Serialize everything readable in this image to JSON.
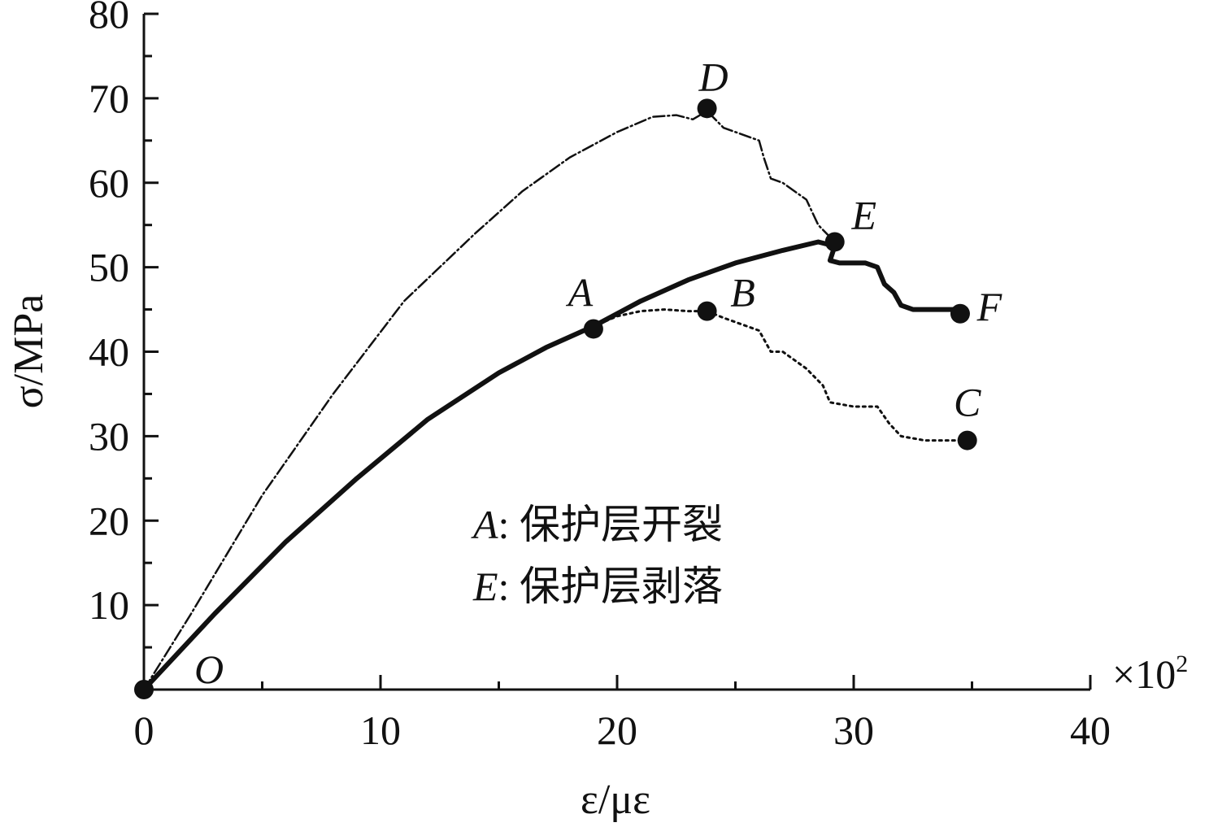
{
  "chart_data": {
    "type": "line",
    "xlabel": "ε/με",
    "ylabel": "σ/MPa",
    "x_multiplier": "×10",
    "x_multiplier_exp": "2",
    "xlim": [
      0,
      40
    ],
    "ylim": [
      0,
      80
    ],
    "x_ticks": [
      "0",
      "10",
      "20",
      "30",
      "40"
    ],
    "y_ticks": [
      "10",
      "20",
      "30",
      "40",
      "50",
      "60",
      "70",
      "80"
    ],
    "grid": false,
    "series": [
      {
        "style": "dash-dot",
        "x": [
          0,
          2,
          5,
          8,
          11,
          14,
          16,
          18,
          20,
          21.5,
          22.5,
          23.2,
          23.8,
          24.5,
          26,
          26.2,
          26.5,
          27,
          28,
          28.5,
          29.2
        ],
        "y": [
          0,
          9,
          23,
          35,
          46,
          54,
          59,
          63,
          66,
          67.8,
          68,
          67.5,
          68.5,
          66.5,
          65,
          63,
          60.5,
          60,
          58,
          55,
          53
        ]
      },
      {
        "style": "solid",
        "x": [
          0,
          3,
          6,
          9,
          12,
          15,
          17,
          19,
          21,
          23,
          25,
          27,
          28.5,
          29.2,
          29,
          29.4,
          30.5,
          31,
          31.3,
          31.7,
          32,
          32.5,
          33.5,
          34.5
        ],
        "y": [
          0,
          9,
          17.5,
          25,
          32,
          37.5,
          40.5,
          43,
          46,
          48.5,
          50.5,
          52,
          53,
          52.5,
          50.8,
          50.5,
          50.5,
          50,
          48,
          47,
          45.5,
          45,
          45,
          45
        ]
      },
      {
        "style": "dotted",
        "x": [
          19,
          20,
          21,
          22,
          23,
          23.8,
          24.5,
          26,
          26.5,
          27,
          28,
          28.7,
          29,
          30,
          31,
          31.5,
          32,
          33,
          34,
          34.8
        ],
        "y": [
          43,
          44.2,
          44.8,
          45,
          44.8,
          44.8,
          44,
          42.5,
          40,
          40,
          38,
          36,
          34,
          33.5,
          33.5,
          31.5,
          30,
          29.5,
          29.5,
          29.5
        ]
      }
    ],
    "points": [
      {
        "label": "O",
        "x": 0,
        "y": 0
      },
      {
        "label": "A",
        "x": 19,
        "y": 42.7
      },
      {
        "label": "B",
        "x": 23.8,
        "y": 44.8
      },
      {
        "label": "C",
        "x": 34.8,
        "y": 29.5
      },
      {
        "label": "D",
        "x": 23.8,
        "y": 68.8
      },
      {
        "label": "E",
        "x": 29.2,
        "y": 53
      },
      {
        "label": "F",
        "x": 34.5,
        "y": 44.5
      }
    ],
    "annotations": [
      {
        "key": "A",
        "text": ": 保护层开裂"
      },
      {
        "key": "E",
        "text": ": 保护层剥落"
      }
    ]
  }
}
